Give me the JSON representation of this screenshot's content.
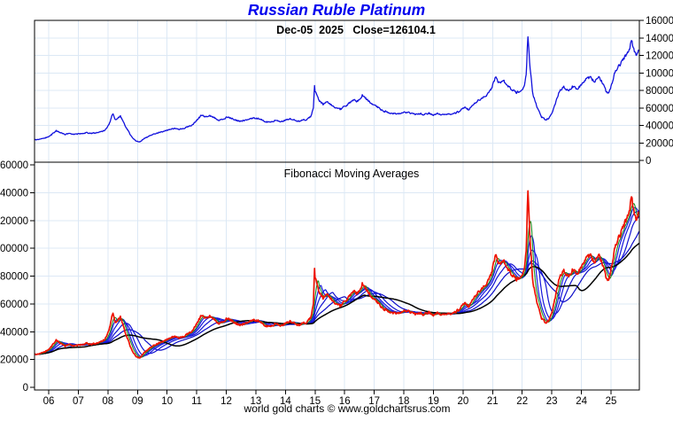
{
  "title": "Russian Ruble Platinum",
  "subtitle": "Dec-05  2025   Close=126104.1",
  "panel2_label": "Fibonacci Moving Averages",
  "footer": "world gold charts © www.goldchartsrus.com",
  "colors": {
    "title": "#0000EE",
    "subtitle": "#000000",
    "grid": "#DCE8F5",
    "axis_text": "#000000",
    "background": "#FFFFFF",
    "top_price_line": "#1111DD",
    "bottom_price_line": "#EE1100"
  },
  "axes": {
    "y_ticks": [
      {
        "label": "0",
        "value": 0
      },
      {
        "label": "20000",
        "value": 20000
      },
      {
        "label": "40000",
        "value": 40000
      },
      {
        "label": "60000",
        "value": 60000
      },
      {
        "label": "80000",
        "value": 80000
      },
      {
        "label": "100000",
        "value": 100000
      },
      {
        "label": "120000",
        "value": 120000
      },
      {
        "label": "140000",
        "value": 140000
      },
      {
        "label": "160000",
        "value": 160000
      }
    ],
    "x_ticks": [
      {
        "label": "06",
        "year": 2006
      },
      {
        "label": "07",
        "year": 2007
      },
      {
        "label": "08",
        "year": 2008
      },
      {
        "label": "09",
        "year": 2009
      },
      {
        "label": "10",
        "year": 2010
      },
      {
        "label": "11",
        "year": 2011
      },
      {
        "label": "12",
        "year": 2012
      },
      {
        "label": "13",
        "year": 2013
      },
      {
        "label": "14",
        "year": 2014
      },
      {
        "label": "15",
        "year": 2015
      },
      {
        "label": "16",
        "year": 2016
      },
      {
        "label": "17",
        "year": 2017
      },
      {
        "label": "18",
        "year": 2018
      },
      {
        "label": "19",
        "year": 2019
      },
      {
        "label": "20",
        "year": 2020
      },
      {
        "label": "21",
        "year": 2021
      },
      {
        "label": "22",
        "year": 2022
      },
      {
        "label": "23",
        "year": 2023
      },
      {
        "label": "24",
        "year": 2024
      },
      {
        "label": "25",
        "year": 2025
      }
    ]
  },
  "chart_data": [
    {
      "panel": "top",
      "type": "line",
      "title": "Russian Ruble Platinum",
      "subtitle_date": "Dec-05 2025",
      "close": 126104.1,
      "ylabel_side": "right",
      "ylim": [
        0,
        160000
      ],
      "xlim": [
        2005.5,
        2025.97
      ],
      "grid": true,
      "series": [
        {
          "name": "platinum-price-rub",
          "color": "#1111DD",
          "keypoints": [
            [
              2005.52,
              23500
            ],
            [
              2005.65,
              24000
            ],
            [
              2005.8,
              25000
            ],
            [
              2005.95,
              26500
            ],
            [
              2006.1,
              29500
            ],
            [
              2006.25,
              34000
            ],
            [
              2006.4,
              31500
            ],
            [
              2006.55,
              29500
            ],
            [
              2006.7,
              31000
            ],
            [
              2006.85,
              29800
            ],
            [
              2007.0,
              30200
            ],
            [
              2007.15,
              31000
            ],
            [
              2007.3,
              31800
            ],
            [
              2007.45,
              30800
            ],
            [
              2007.6,
              31500
            ],
            [
              2007.75,
              32500
            ],
            [
              2007.9,
              34500
            ],
            [
              2008.05,
              42000
            ],
            [
              2008.15,
              52500
            ],
            [
              2008.17,
              53500
            ],
            [
              2008.24,
              47000
            ],
            [
              2008.33,
              48500
            ],
            [
              2008.42,
              50500
            ],
            [
              2008.52,
              44000
            ],
            [
              2008.65,
              36000
            ],
            [
              2008.8,
              27000
            ],
            [
              2008.95,
              22000
            ],
            [
              2009.08,
              21000
            ],
            [
              2009.2,
              24500
            ],
            [
              2009.35,
              27000
            ],
            [
              2009.5,
              30000
            ],
            [
              2009.65,
              31000
            ],
            [
              2009.8,
              32500
            ],
            [
              2009.95,
              34000
            ],
            [
              2010.1,
              35500
            ],
            [
              2010.25,
              36500
            ],
            [
              2010.4,
              35500
            ],
            [
              2010.55,
              36500
            ],
            [
              2010.7,
              38500
            ],
            [
              2010.85,
              40500
            ],
            [
              2011.0,
              45500
            ],
            [
              2011.15,
              51500
            ],
            [
              2011.3,
              49500
            ],
            [
              2011.45,
              51000
            ],
            [
              2011.6,
              48500
            ],
            [
              2011.75,
              46000
            ],
            [
              2011.9,
              47500
            ],
            [
              2012.05,
              50000
            ],
            [
              2012.2,
              48000
            ],
            [
              2012.35,
              46000
            ],
            [
              2012.5,
              44800
            ],
            [
              2012.65,
              46000
            ],
            [
              2012.8,
              47500
            ],
            [
              2012.95,
              48500
            ],
            [
              2013.1,
              47500
            ],
            [
              2013.25,
              45500
            ],
            [
              2013.4,
              43800
            ],
            [
              2013.55,
              44800
            ],
            [
              2013.7,
              46000
            ],
            [
              2013.85,
              44500
            ],
            [
              2014.0,
              45800
            ],
            [
              2014.15,
              47500
            ],
            [
              2014.3,
              46500
            ],
            [
              2014.45,
              44800
            ],
            [
              2014.6,
              46000
            ],
            [
              2014.75,
              47500
            ],
            [
              2014.87,
              51000
            ],
            [
              2014.955,
              62000
            ],
            [
              2014.975,
              88500
            ],
            [
              2015.0,
              80000
            ],
            [
              2015.08,
              72000
            ],
            [
              2015.17,
              67000
            ],
            [
              2015.28,
              64000
            ],
            [
              2015.42,
              67500
            ],
            [
              2015.55,
              63500
            ],
            [
              2015.7,
              60500
            ],
            [
              2015.85,
              58500
            ],
            [
              2016.0,
              61500
            ],
            [
              2016.15,
              65500
            ],
            [
              2016.3,
              69500
            ],
            [
              2016.45,
              67500
            ],
            [
              2016.6,
              74500
            ],
            [
              2016.75,
              69500
            ],
            [
              2016.9,
              66000
            ],
            [
              2017.05,
              62000
            ],
            [
              2017.2,
              58500
            ],
            [
              2017.35,
              56000
            ],
            [
              2017.5,
              54500
            ],
            [
              2017.65,
              53800
            ],
            [
              2017.8,
              53000
            ],
            [
              2017.95,
              53800
            ],
            [
              2018.1,
              55200
            ],
            [
              2018.25,
              53500
            ],
            [
              2018.4,
              52300
            ],
            [
              2018.55,
              53200
            ],
            [
              2018.7,
              52300
            ],
            [
              2018.85,
              53800
            ],
            [
              2019.0,
              52300
            ],
            [
              2019.15,
              53300
            ],
            [
              2019.3,
              52200
            ],
            [
              2019.45,
              53200
            ],
            [
              2019.6,
              52500
            ],
            [
              2019.75,
              54000
            ],
            [
              2019.9,
              56500
            ],
            [
              2020.05,
              60500
            ],
            [
              2020.2,
              57500
            ],
            [
              2020.35,
              64000
            ],
            [
              2020.5,
              68000
            ],
            [
              2020.65,
              71000
            ],
            [
              2020.8,
              74500
            ],
            [
              2020.95,
              81000
            ],
            [
              2021.1,
              94500
            ],
            [
              2021.22,
              88500
            ],
            [
              2021.35,
              91500
            ],
            [
              2021.5,
              86000
            ],
            [
              2021.65,
              81000
            ],
            [
              2021.8,
              77500
            ],
            [
              2021.95,
              79500
            ],
            [
              2022.07,
              86000
            ],
            [
              2022.14,
              98000
            ],
            [
              2022.185,
              142500
            ],
            [
              2022.2,
              140000
            ],
            [
              2022.26,
              108000
            ],
            [
              2022.36,
              76000
            ],
            [
              2022.5,
              61000
            ],
            [
              2022.65,
              49500
            ],
            [
              2022.8,
              46000
            ],
            [
              2022.95,
              50000
            ],
            [
              2023.1,
              63000
            ],
            [
              2023.25,
              78500
            ],
            [
              2023.4,
              83500
            ],
            [
              2023.55,
              79500
            ],
            [
              2023.7,
              84500
            ],
            [
              2023.85,
              81000
            ],
            [
              2024.0,
              86500
            ],
            [
              2024.15,
              92500
            ],
            [
              2024.3,
              95000
            ],
            [
              2024.45,
              90000
            ],
            [
              2024.6,
              96000
            ],
            [
              2024.72,
              88000
            ],
            [
              2024.82,
              80000
            ],
            [
              2024.92,
              76500
            ],
            [
              2025.02,
              86000
            ],
            [
              2025.12,
              99500
            ],
            [
              2025.22,
              106000
            ],
            [
              2025.32,
              110500
            ],
            [
              2025.42,
              115500
            ],
            [
              2025.52,
              121000
            ],
            [
              2025.62,
              127500
            ],
            [
              2025.69,
              136000
            ],
            [
              2025.705,
              138500
            ],
            [
              2025.72,
              130000
            ],
            [
              2025.78,
              126000
            ],
            [
              2025.85,
              120500
            ],
            [
              2025.95,
              126104
            ]
          ]
        }
      ]
    },
    {
      "panel": "bottom",
      "type": "line",
      "title": "Fibonacci Moving Averages",
      "uses_series": "platinum-price-rub",
      "price_color": "#EE1100",
      "ylabel_side": "left",
      "ylim": [
        0,
        160000
      ],
      "xlim": [
        2005.5,
        2025.97
      ],
      "grid": true,
      "moving_averages": [
        {
          "window_weeks": 8,
          "color": "#1E8C1E"
        },
        {
          "window_weeks": 13,
          "color": "#1A1AE6"
        },
        {
          "window_weeks": 21,
          "color": "#1616DC"
        },
        {
          "window_weeks": 34,
          "color": "#1111D2"
        },
        {
          "window_weeks": 55,
          "color": "#0C0CC8"
        },
        {
          "window_weeks": 89,
          "color": "#000000"
        }
      ]
    }
  ],
  "render": {
    "noise_seed": 20251205,
    "noise_pct": 0.016,
    "noise_autocorr": 0.35,
    "samples_per_year": 52
  }
}
